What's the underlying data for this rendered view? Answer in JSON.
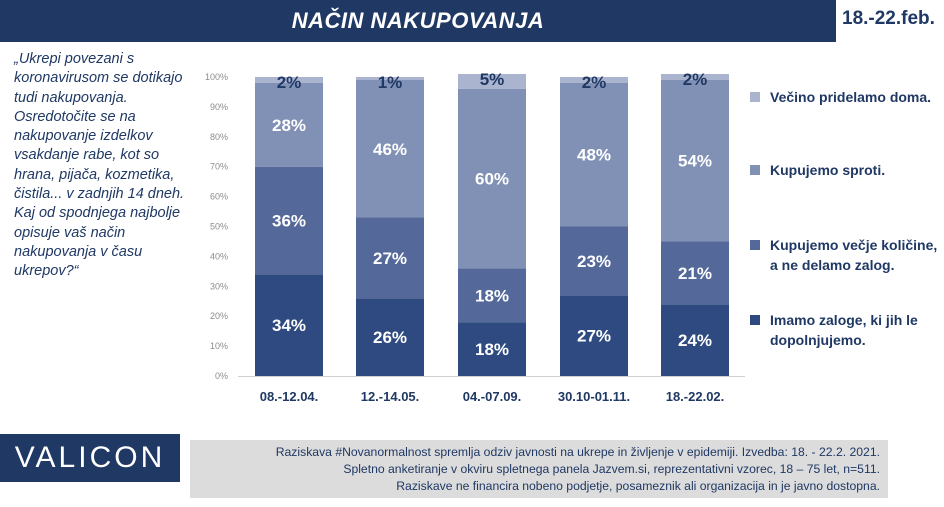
{
  "header": {
    "title": "NAČIN NAKUPOVANJA",
    "date": "18.-22.feb."
  },
  "question": "„Ukrepi povezani s koronavirusom se dotikajo tudi nakupovanja. Osredotočite se na nakupovanje izdelkov vsakdanje rabe, kot so hrana, pijača, kozmetika, čistila... v zadnjih 14 dneh. Kaj od spodnjega najbolje opisuje vaš način nakupovanja v času ukrepov?“",
  "brand": {
    "logo": "VALICON"
  },
  "footer": {
    "line1": "Raziskava #Novanormalnost spremlja odziv javnosti na ukrepe in življenje v epidemiji. Izvedba: 18. - 22.2. 2021.",
    "line2": "Spletno anketiranje v okviru spletnega panela Jazvem.si, reprezentativni vzorec, 18 – 75 let, n=511.",
    "line3": "Raziskave ne financira nobeno podjetje, posameznik ali organizacija in je javno dostopna."
  },
  "chart_data": {
    "type": "bar",
    "stacked": true,
    "categories": [
      "08.-12.04.",
      "12.-14.05.",
      "04.-07.09.",
      "30.10-01.11.",
      "18.-22.02."
    ],
    "y_ticks": [
      "0%",
      "10%",
      "20%",
      "30%",
      "40%",
      "50%",
      "60%",
      "70%",
      "80%",
      "90%",
      "100%"
    ],
    "ylim": [
      0,
      100
    ],
    "series": [
      {
        "name": "Imamo zaloge, ki jih le dopolnjujemo.",
        "values": [
          34,
          26,
          18,
          27,
          24
        ],
        "labels": [
          "34%",
          "26%",
          "18%",
          "27%",
          "24%"
        ],
        "color": "#2e4a80",
        "label_color": "#ffffff"
      },
      {
        "name": "Kupujemo večje količine, a ne delamo zalog.",
        "values": [
          36,
          27,
          18,
          23,
          21
        ],
        "labels": [
          "36%",
          "27%",
          "18%",
          "23%",
          "21%"
        ],
        "color": "#54699a",
        "label_color": "#ffffff"
      },
      {
        "name": "Kupujemo sproti.",
        "values": [
          28,
          46,
          60,
          48,
          54
        ],
        "labels": [
          "28%",
          "46%",
          "60%",
          "48%",
          "54%"
        ],
        "color": "#8190b5",
        "label_color": "#ffffff"
      },
      {
        "name": "Večino pridelamo doma.",
        "values": [
          2,
          1,
          5,
          2,
          2
        ],
        "labels": [
          "2%",
          "1%",
          "5%",
          "2%",
          "2%"
        ],
        "color": "#aab4cf",
        "label_color": "#1f3864"
      }
    ],
    "legend": "right"
  }
}
